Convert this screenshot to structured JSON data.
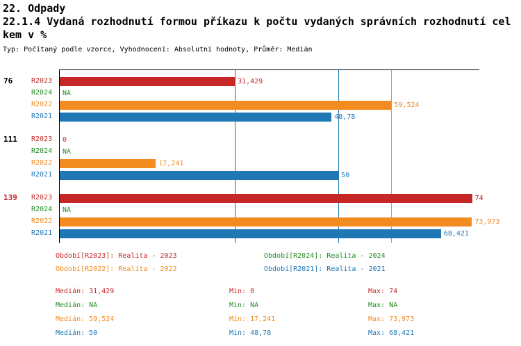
{
  "header": {
    "section": "22. Odpady",
    "title_line1": "22.1.4 Vydaná rozhodnutí formou příkazu k počtu vydaných správních rozhodnutí cel",
    "title_line2": "kem v %",
    "subtitle": "Typ: Počítaný podle vzorce, Vyhodnocení: Absolutní hodnoty, Průměr: Medián"
  },
  "chart_data": {
    "type": "bar",
    "orientation": "horizontal",
    "axis_max": 75.3,
    "grid": false,
    "series_order": [
      "R2023",
      "R2024",
      "R2022",
      "R2021"
    ],
    "series_colors": {
      "R2023": "#c62828",
      "R2024": "#228b22",
      "R2022": "#f28b20",
      "R2021": "#1f77b4"
    },
    "groups": [
      {
        "id": "76",
        "id_color": "#000000",
        "bars": [
          {
            "series": "R2023",
            "value": 31.429,
            "label": "31,429"
          },
          {
            "series": "R2024",
            "value": null,
            "label": "NA"
          },
          {
            "series": "R2022",
            "value": 59.524,
            "label": "59,524"
          },
          {
            "series": "R2021",
            "value": 48.78,
            "label": "48,78"
          }
        ]
      },
      {
        "id": "111",
        "id_color": "#000000",
        "bars": [
          {
            "series": "R2023",
            "value": 0,
            "label": "0"
          },
          {
            "series": "R2024",
            "value": null,
            "label": "NA"
          },
          {
            "series": "R2022",
            "value": 17.241,
            "label": "17,241"
          },
          {
            "series": "R2021",
            "value": 50,
            "label": "50"
          }
        ]
      },
      {
        "id": "139",
        "id_color": "#c62828",
        "bars": [
          {
            "series": "R2023",
            "value": 74,
            "label": "74"
          },
          {
            "series": "R2024",
            "value": null,
            "label": "NA"
          },
          {
            "series": "R2022",
            "value": 73.973,
            "label": "73,973"
          },
          {
            "series": "R2021",
            "value": 68.421,
            "label": "68,421"
          }
        ]
      }
    ],
    "median_lines": [
      {
        "series": "R2023",
        "value": 31.429
      },
      {
        "series": "R2022",
        "value": 59.524
      },
      {
        "series": "R2021",
        "value": 50
      }
    ]
  },
  "legend": [
    {
      "series": "R2023",
      "label": "Období[R2023]: Realita - 2023"
    },
    {
      "series": "R2024",
      "label": "Období[R2024]: Realita - 2024"
    },
    {
      "series": "R2022",
      "label": "Období[R2022]: Realita - 2022"
    },
    {
      "series": "R2021",
      "label": "Období[R2021]: Realita - 2021"
    }
  ],
  "stats": [
    {
      "series": "R2023",
      "median": "Medián: 31,429",
      "min": "Min: 0",
      "max": "Max: 74"
    },
    {
      "series": "R2024",
      "median": "Medián: NA",
      "min": "Min: NA",
      "max": "Max: NA"
    },
    {
      "series": "R2022",
      "median": "Medián: 59,524",
      "min": "Min: 17,241",
      "max": "Max: 73,973"
    },
    {
      "series": "R2021",
      "median": "Medián: 50",
      "min": "Min: 48,78",
      "max": "Max: 68,421"
    }
  ]
}
